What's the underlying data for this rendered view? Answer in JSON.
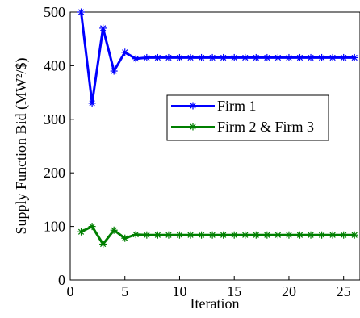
{
  "chart_data": {
    "type": "line",
    "xlabel": "Iteration",
    "ylabel": "Supply Function Bid (MW²/$)",
    "xlim": [
      0,
      26.5
    ],
    "ylim": [
      0,
      500
    ],
    "xticks": [
      0,
      5,
      10,
      15,
      20,
      25
    ],
    "yticks": [
      0,
      100,
      200,
      300,
      400,
      500
    ],
    "grid": false,
    "legend_position": "center-right",
    "x": [
      1,
      2,
      3,
      4,
      5,
      6,
      7,
      8,
      9,
      10,
      11,
      12,
      13,
      14,
      15,
      16,
      17,
      18,
      19,
      20,
      21,
      22,
      23,
      24,
      25,
      26
    ],
    "series": [
      {
        "name": "Firm 1",
        "color": "#0000ff",
        "marker": "star",
        "values": [
          500,
          330,
          470,
          390,
          425,
          413,
          415,
          415,
          415,
          415,
          415,
          415,
          415,
          415,
          415,
          415,
          415,
          415,
          415,
          415,
          415,
          415,
          415,
          415,
          415,
          415
        ]
      },
      {
        "name": "Firm 2 & Firm 3",
        "color": "#007f00",
        "marker": "star",
        "values": [
          90,
          100,
          67,
          93,
          78,
          85,
          84,
          84,
          84,
          84,
          84,
          84,
          84,
          84,
          84,
          84,
          84,
          84,
          84,
          84,
          84,
          84,
          84,
          84,
          84,
          84
        ]
      }
    ]
  }
}
